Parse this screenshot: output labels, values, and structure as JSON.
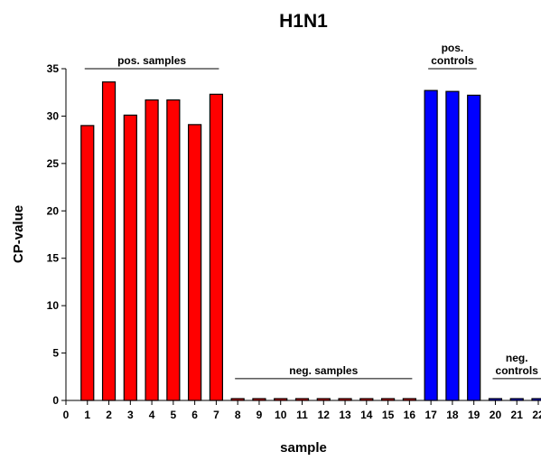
{
  "chart_data": {
    "type": "bar",
    "title": "H1N1",
    "xlabel": "sample",
    "ylabel": "CP-value",
    "xlim": [
      0,
      22
    ],
    "ylim": [
      0,
      35
    ],
    "x_ticks": [
      0,
      1,
      2,
      3,
      4,
      5,
      6,
      7,
      8,
      9,
      10,
      11,
      12,
      13,
      14,
      15,
      16,
      17,
      18,
      19,
      20,
      21,
      22
    ],
    "y_ticks": [
      0,
      5,
      10,
      15,
      20,
      25,
      30,
      35
    ],
    "grid": false,
    "colors": {
      "red": "#ff0000",
      "blue": "#0000ff",
      "edge": "#000000"
    },
    "bars": [
      {
        "x": 1,
        "value": 29.0,
        "color": "#ff0000"
      },
      {
        "x": 2,
        "value": 33.6,
        "color": "#ff0000"
      },
      {
        "x": 3,
        "value": 30.1,
        "color": "#ff0000"
      },
      {
        "x": 4,
        "value": 31.7,
        "color": "#ff0000"
      },
      {
        "x": 5,
        "value": 31.7,
        "color": "#ff0000"
      },
      {
        "x": 6,
        "value": 29.1,
        "color": "#ff0000"
      },
      {
        "x": 7,
        "value": 32.3,
        "color": "#ff0000"
      },
      {
        "x": 8,
        "value": 0,
        "color": "#ff0000"
      },
      {
        "x": 9,
        "value": 0,
        "color": "#ff0000"
      },
      {
        "x": 10,
        "value": 0,
        "color": "#ff0000"
      },
      {
        "x": 11,
        "value": 0,
        "color": "#ff0000"
      },
      {
        "x": 12,
        "value": 0,
        "color": "#ff0000"
      },
      {
        "x": 13,
        "value": 0,
        "color": "#ff0000"
      },
      {
        "x": 14,
        "value": 0,
        "color": "#ff0000"
      },
      {
        "x": 15,
        "value": 0,
        "color": "#ff0000"
      },
      {
        "x": 16,
        "value": 0,
        "color": "#ff0000"
      },
      {
        "x": 17,
        "value": 32.7,
        "color": "#0000ff"
      },
      {
        "x": 18,
        "value": 32.6,
        "color": "#0000ff"
      },
      {
        "x": 19,
        "value": 32.2,
        "color": "#0000ff"
      },
      {
        "x": 20,
        "value": 0,
        "color": "#0000ff"
      },
      {
        "x": 21,
        "value": 0,
        "color": "#0000ff"
      },
      {
        "x": 22,
        "value": 0,
        "color": "#0000ff"
      }
    ],
    "annotations": [
      {
        "lines": [
          "pos. samples"
        ],
        "from": 1,
        "to": 7,
        "line_value": 35
      },
      {
        "lines": [
          "neg. samples"
        ],
        "from": 8,
        "to": 16,
        "line_value": 2.3
      },
      {
        "lines": [
          "pos.",
          "controls"
        ],
        "from": 17,
        "to": 19,
        "line_value": 35
      },
      {
        "lines": [
          "neg.",
          "controls"
        ],
        "from": 20,
        "to": 22,
        "line_value": 2.3
      }
    ]
  }
}
